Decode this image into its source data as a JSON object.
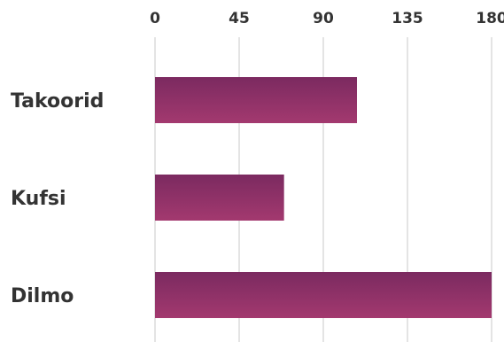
{
  "chart_data": {
    "type": "bar",
    "orientation": "horizontal",
    "categories": [
      "Takoorid",
      "Kufsi",
      "Dilmo"
    ],
    "values": [
      108,
      69,
      180
    ],
    "xticks": [
      0,
      45,
      90,
      135,
      180
    ],
    "xlim": [
      0,
      180
    ],
    "title": "",
    "xlabel": "",
    "ylabel": "",
    "grid": true,
    "axis_position": "top",
    "colors": {
      "bar_top": "#7b2a60",
      "bar_bottom": "#a3396f",
      "grid": "#dcdcdc",
      "text": "#333333"
    }
  }
}
